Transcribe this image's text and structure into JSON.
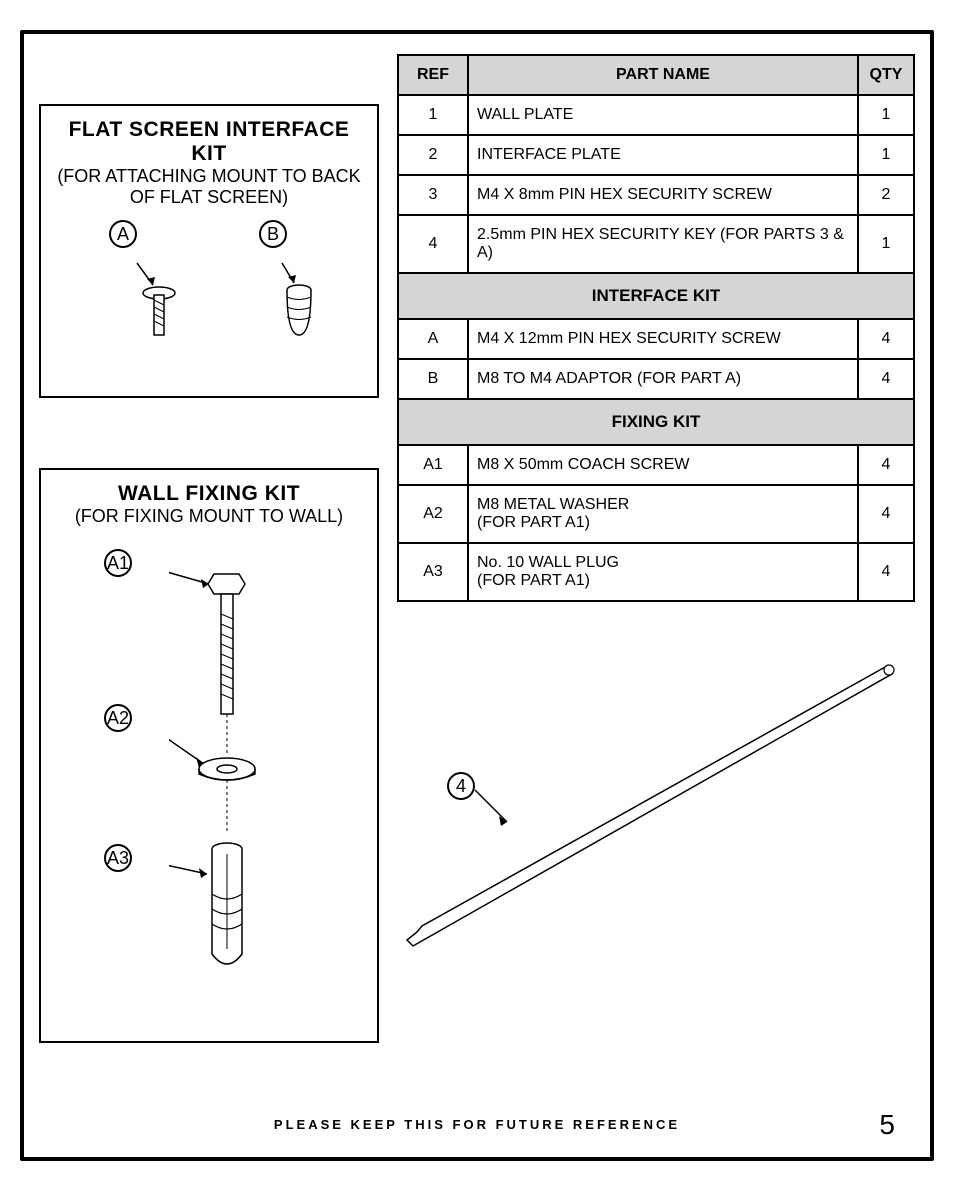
{
  "interface_kit": {
    "title": "FLAT SCREEN INTERFACE KIT",
    "subtitle": "(FOR ATTACHING MOUNT TO BACK OF FLAT SCREEN)",
    "labels": {
      "a": "A",
      "b": "B"
    }
  },
  "fixing_kit": {
    "title": "WALL FIXING KIT",
    "subtitle": "(FOR FIXING MOUNT TO WALL)",
    "labels": {
      "a1": "A1",
      "a2": "A2",
      "a3": "A3"
    }
  },
  "hex_label": "4",
  "table": {
    "headers": {
      "ref": "REF",
      "name": "PART NAME",
      "qty": "QTY"
    },
    "rows_main": [
      {
        "ref": "1",
        "name": "WALL PLATE",
        "qty": "1"
      },
      {
        "ref": "2",
        "name": "INTERFACE PLATE",
        "qty": "1"
      },
      {
        "ref": "3",
        "name": "M4 X 8mm PIN HEX SECURITY SCREW",
        "qty": "2"
      },
      {
        "ref": "4",
        "name": "2.5mm PIN HEX SECURITY KEY (FOR PARTS 3 & A)",
        "qty": "1"
      }
    ],
    "section_interface": "INTERFACE KIT",
    "rows_interface": [
      {
        "ref": "A",
        "name": "M4 X 12mm PIN HEX SECURITY SCREW",
        "qty": "4"
      },
      {
        "ref": "B",
        "name": "M8 TO M4 ADAPTOR (FOR PART A)",
        "qty": "4"
      }
    ],
    "section_fixing": "FIXING KIT",
    "rows_fixing": [
      {
        "ref": "A1",
        "name": "M8 X 50mm COACH SCREW",
        "qty": "4"
      },
      {
        "ref": "A2",
        "name": "M8 METAL WASHER\n(FOR PART A1)",
        "qty": "4"
      },
      {
        "ref": "A3",
        "name": "No. 10 WALL PLUG\n(FOR PART A1)",
        "qty": "4"
      }
    ]
  },
  "footer": {
    "text": "PLEASE KEEP THIS FOR FUTURE REFERENCE",
    "page": "5"
  },
  "colors": {
    "header_bg": "#d5d5d5",
    "border": "#000000",
    "bg": "#ffffff"
  }
}
